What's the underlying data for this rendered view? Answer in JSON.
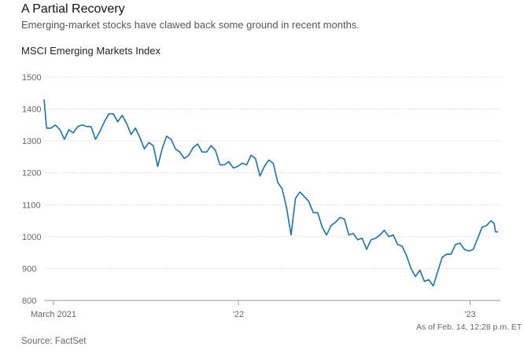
{
  "header": {
    "title": "A Partial Recovery",
    "subtitle": "Emerging-market stocks have clawed back some ground in recent months.",
    "series_label": "MSCI Emerging Markets Index"
  },
  "footer": {
    "note": "As of Feb. 14, 12:28 p.m. ET",
    "source": "Source: FactSet"
  },
  "colors": {
    "line": "#1f6fa8",
    "grid": "#d9d9d9",
    "axis": "#999999"
  },
  "chart_data": {
    "type": "line",
    "title": "A Partial Recovery",
    "subtitle": "Emerging-market stocks have clawed back some ground in recent months.",
    "ylabel": "MSCI Emerging Markets Index",
    "ylim": [
      800,
      1500
    ],
    "yticks": [
      800,
      900,
      1000,
      1100,
      1200,
      1300,
      1400,
      1500
    ],
    "grid": "horizontal",
    "xlim": [
      "2021-03-01",
      "2023-02-14"
    ],
    "xticks": [
      {
        "x": "2021-03-01",
        "label": "March 2021"
      },
      {
        "x": "2022-01-01",
        "label": "'22"
      },
      {
        "x": "2023-01-01",
        "label": "'23"
      }
    ],
    "series": [
      {
        "values": [
          [
            "2021-03-01",
            1430
          ],
          [
            "2021-03-05",
            1340
          ],
          [
            "2021-03-12",
            1340
          ],
          [
            "2021-03-19",
            1350
          ],
          [
            "2021-03-26",
            1335
          ],
          [
            "2021-04-02",
            1305
          ],
          [
            "2021-04-09",
            1335
          ],
          [
            "2021-04-16",
            1325
          ],
          [
            "2021-04-23",
            1345
          ],
          [
            "2021-04-30",
            1350
          ],
          [
            "2021-05-07",
            1345
          ],
          [
            "2021-05-14",
            1345
          ],
          [
            "2021-05-21",
            1305
          ],
          [
            "2021-05-28",
            1330
          ],
          [
            "2021-06-04",
            1360
          ],
          [
            "2021-06-11",
            1385
          ],
          [
            "2021-06-18",
            1385
          ],
          [
            "2021-06-25",
            1360
          ],
          [
            "2021-07-02",
            1380
          ],
          [
            "2021-07-09",
            1355
          ],
          [
            "2021-07-16",
            1320
          ],
          [
            "2021-07-23",
            1340
          ],
          [
            "2021-07-30",
            1310
          ],
          [
            "2021-08-06",
            1275
          ],
          [
            "2021-08-13",
            1295
          ],
          [
            "2021-08-20",
            1285
          ],
          [
            "2021-08-27",
            1220
          ],
          [
            "2021-09-03",
            1275
          ],
          [
            "2021-09-10",
            1315
          ],
          [
            "2021-09-17",
            1305
          ],
          [
            "2021-09-24",
            1275
          ],
          [
            "2021-10-01",
            1265
          ],
          [
            "2021-10-08",
            1245
          ],
          [
            "2021-10-15",
            1255
          ],
          [
            "2021-10-22",
            1280
          ],
          [
            "2021-10-29",
            1290
          ],
          [
            "2021-11-05",
            1265
          ],
          [
            "2021-11-12",
            1265
          ],
          [
            "2021-11-19",
            1285
          ],
          [
            "2021-11-26",
            1270
          ],
          [
            "2021-12-03",
            1225
          ],
          [
            "2021-12-10",
            1225
          ],
          [
            "2021-12-17",
            1235
          ],
          [
            "2021-12-24",
            1215
          ],
          [
            "2021-12-31",
            1220
          ],
          [
            "2022-01-07",
            1230
          ],
          [
            "2022-01-14",
            1225
          ],
          [
            "2022-01-21",
            1255
          ],
          [
            "2022-01-28",
            1245
          ],
          [
            "2022-02-04",
            1190
          ],
          [
            "2022-02-11",
            1220
          ],
          [
            "2022-02-18",
            1240
          ],
          [
            "2022-02-25",
            1230
          ],
          [
            "2022-03-04",
            1170
          ],
          [
            "2022-03-11",
            1150
          ],
          [
            "2022-03-18",
            1090
          ],
          [
            "2022-03-25",
            1005
          ],
          [
            "2022-04-01",
            1120
          ],
          [
            "2022-04-08",
            1140
          ],
          [
            "2022-04-15",
            1125
          ],
          [
            "2022-04-22",
            1110
          ],
          [
            "2022-04-29",
            1075
          ],
          [
            "2022-05-06",
            1075
          ],
          [
            "2022-05-13",
            1030
          ],
          [
            "2022-05-20",
            1005
          ],
          [
            "2022-05-27",
            1035
          ],
          [
            "2022-06-03",
            1045
          ],
          [
            "2022-06-10",
            1060
          ],
          [
            "2022-06-17",
            1055
          ],
          [
            "2022-06-24",
            1005
          ],
          [
            "2022-07-01",
            1010
          ],
          [
            "2022-07-08",
            990
          ],
          [
            "2022-07-15",
            995
          ],
          [
            "2022-07-22",
            960
          ],
          [
            "2022-07-29",
            990
          ],
          [
            "2022-08-05",
            995
          ],
          [
            "2022-08-12",
            1005
          ],
          [
            "2022-08-19",
            1020
          ],
          [
            "2022-08-26",
            1000
          ],
          [
            "2022-09-02",
            1005
          ],
          [
            "2022-09-09",
            975
          ],
          [
            "2022-09-16",
            970
          ],
          [
            "2022-09-23",
            940
          ],
          [
            "2022-09-30",
            900
          ],
          [
            "2022-10-07",
            875
          ],
          [
            "2022-10-14",
            895
          ],
          [
            "2022-10-21",
            860
          ],
          [
            "2022-10-28",
            865
          ],
          [
            "2022-11-04",
            845
          ],
          [
            "2022-11-11",
            890
          ],
          [
            "2022-11-18",
            935
          ],
          [
            "2022-11-25",
            945
          ],
          [
            "2022-12-02",
            945
          ],
          [
            "2022-12-09",
            975
          ],
          [
            "2022-12-16",
            980
          ],
          [
            "2022-12-23",
            960
          ],
          [
            "2022-12-30",
            955
          ],
          [
            "2023-01-06",
            960
          ],
          [
            "2023-01-13",
            995
          ],
          [
            "2023-01-20",
            1030
          ],
          [
            "2023-01-27",
            1035
          ],
          [
            "2023-02-03",
            1050
          ],
          [
            "2023-02-08",
            1040
          ],
          [
            "2023-02-10",
            1015
          ],
          [
            "2023-02-14",
            1015
          ]
        ]
      }
    ]
  }
}
